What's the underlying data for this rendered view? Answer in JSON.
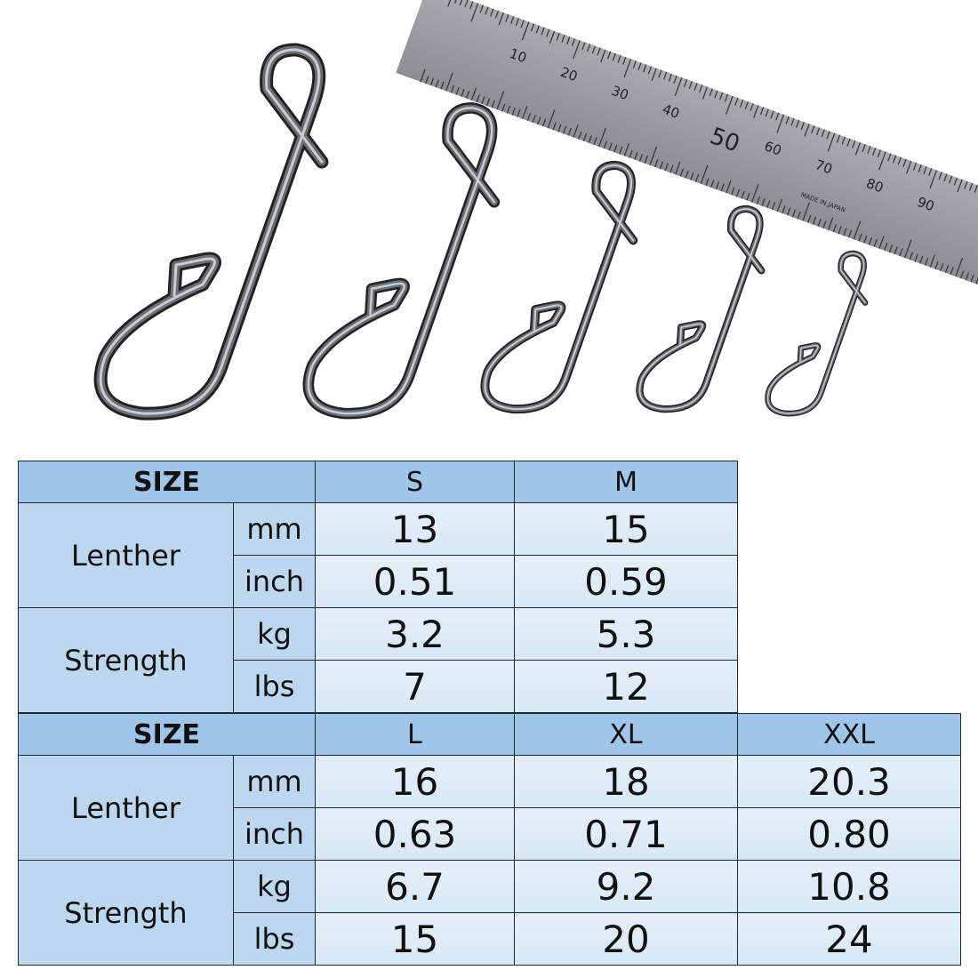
{
  "ruler": {
    "labels": [
      "10",
      "20",
      "30",
      "40",
      "50",
      "60",
      "70",
      "80",
      "90"
    ],
    "imprint": "MADE IN JAPAN"
  },
  "tables": [
    {
      "size_label": "SIZE",
      "sizes": [
        "S",
        "M"
      ],
      "length_label": "Lenther",
      "strength_label": "Strength",
      "units": {
        "mm": "mm",
        "inch": "inch",
        "kg": "kg",
        "lbs": "lbs"
      },
      "mm": [
        "13",
        "15"
      ],
      "inch": [
        "0.51",
        "0.59"
      ],
      "kg": [
        "3.2",
        "5.3"
      ],
      "lbs": [
        "7",
        "12"
      ]
    },
    {
      "size_label": "SIZE",
      "sizes": [
        "L",
        "XL",
        "XXL"
      ],
      "length_label": "Lenther",
      "strength_label": "Strength",
      "units": {
        "mm": "mm",
        "inch": "inch",
        "kg": "kg",
        "lbs": "lbs"
      },
      "mm": [
        "16",
        "18",
        "20.3"
      ],
      "inch": [
        "0.63",
        "0.71",
        "0.80"
      ],
      "kg": [
        "6.7",
        "9.2",
        "10.8"
      ],
      "lbs": [
        "15",
        "20",
        "24"
      ]
    }
  ],
  "colors": {
    "header": "#9fc5e8",
    "label": "#bdd7ee",
    "cell": "#deebf7",
    "metal": "#3a3d42"
  }
}
